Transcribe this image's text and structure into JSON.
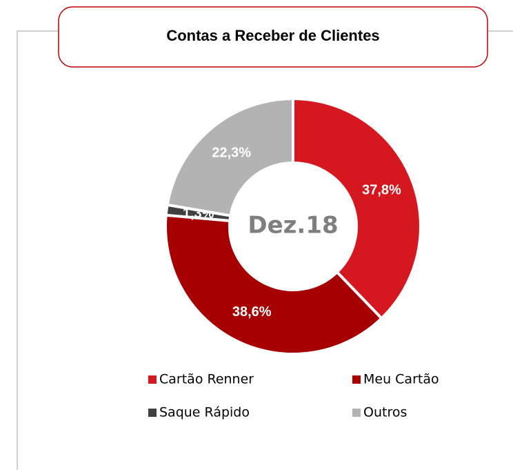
{
  "chart_data": {
    "type": "donut",
    "title": "Contas a Receber de Clientes",
    "center_label": "Dez.18",
    "categories": [
      "Cartão Renner",
      "Meu Cartão",
      "Saque Rápido",
      "Outros"
    ],
    "values": [
      37.8,
      38.6,
      1.3,
      22.3
    ],
    "value_labels": [
      "37,8%",
      "38,6%",
      "1,3%",
      "22,3%"
    ],
    "colors": [
      "#d5171f",
      "#a60000",
      "#404040",
      "#b3b3b3"
    ],
    "legend": "bottom"
  }
}
